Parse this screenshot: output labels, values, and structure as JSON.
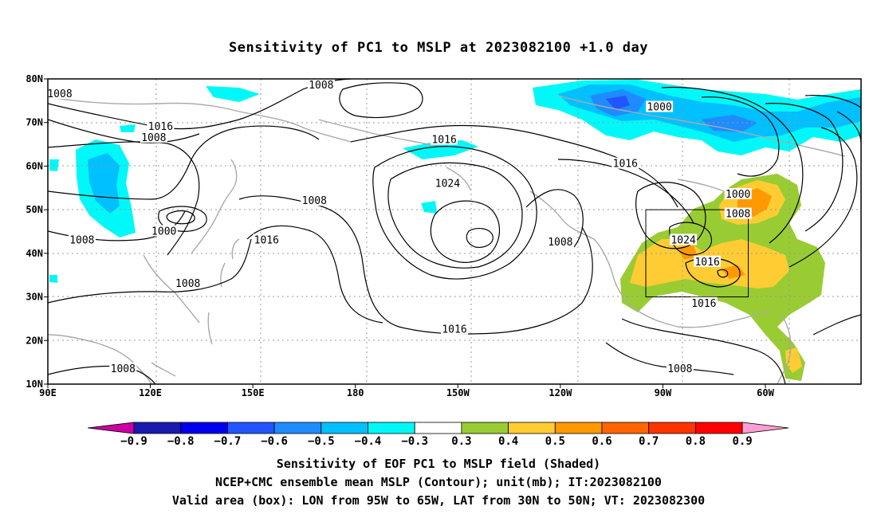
{
  "title": "Sensitivity of PC1 to MSLP at 2023082100 +1.0 day",
  "map": {
    "lat_ticks": [
      "80N",
      "70N",
      "60N",
      "50N",
      "40N",
      "30N",
      "20N",
      "10N"
    ],
    "lon_ticks": [
      "90E",
      "120E",
      "150E",
      "180",
      "150W",
      "120W",
      "90W",
      "60W"
    ],
    "contour_unit": "mb",
    "contour_labels": [
      {
        "text": "1008",
        "lon": 93.5,
        "lat": 76.5
      },
      {
        "text": "1016",
        "lon": 123,
        "lat": 69.0
      },
      {
        "text": "1008",
        "lon": 121,
        "lat": 66.5
      },
      {
        "text": "1008",
        "lon": 170,
        "lat": 78.5
      },
      {
        "text": "1016",
        "lon": -154,
        "lat": 66.0
      },
      {
        "text": "1000",
        "lon": -91,
        "lat": 73.5
      },
      {
        "text": "1016",
        "lon": -101,
        "lat": 60.5
      },
      {
        "text": "1024",
        "lon": -153,
        "lat": 56.0
      },
      {
        "text": "1008",
        "lon": 168,
        "lat": 52.0
      },
      {
        "text": "1000",
        "lon": -68,
        "lat": 53.5
      },
      {
        "text": "1008",
        "lon": -68,
        "lat": 49.0
      },
      {
        "text": "1000",
        "lon": 124,
        "lat": 45.0
      },
      {
        "text": "1016",
        "lon": 154,
        "lat": 43.0
      },
      {
        "text": "1008",
        "lon": 100,
        "lat": 43.0
      },
      {
        "text": "1024",
        "lon": -84,
        "lat": 43.0
      },
      {
        "text": "1008",
        "lon": -120,
        "lat": 42.5
      },
      {
        "text": "1016",
        "lon": -77,
        "lat": 38.0
      },
      {
        "text": "1008",
        "lon": 131,
        "lat": 33.0
      },
      {
        "text": "1016",
        "lon": -78,
        "lat": 28.5
      },
      {
        "text": "1016",
        "lon": -151,
        "lat": 22.5
      },
      {
        "text": "1008",
        "lon": 112,
        "lat": 13.5
      },
      {
        "text": "1008",
        "lon": -85,
        "lat": 13.5
      }
    ],
    "valid_box": {
      "lon_w": -95,
      "lon_e": -65,
      "lat_s": 30,
      "lat_n": 50
    }
  },
  "colorbar": {
    "labels": [
      "−0.9",
      "−0.8",
      "−0.7",
      "−0.6",
      "−0.5",
      "−0.4",
      "−0.3",
      "0.3",
      "0.4",
      "0.5",
      "0.6",
      "0.7",
      "0.8",
      "0.9"
    ],
    "colors": [
      "#cc00a0",
      "#1a1ab0",
      "#0000ee",
      "#2255ff",
      "#1e8cff",
      "#00c0ff",
      "#00f8f8",
      "#ffffff",
      "#99cc33",
      "#ffcc33",
      "#ff9900",
      "#ff6600",
      "#ff3300",
      "#ff0000",
      "#ff9ed2"
    ]
  },
  "shading_colors": {
    "neg_strong": "#2255ff",
    "neg_mid": "#1e8cff",
    "neg_light": "#00c0ff",
    "neg_faint": "#00f8f8",
    "pos_faint": "#99cc33",
    "pos_light": "#ffcc33",
    "pos_mid": "#ff9900"
  },
  "captions": {
    "line1": "Sensitivity of EOF PC1 to MSLP field (Shaded)",
    "line2": "NCEP+CMC ensemble mean MSLP (Contour); unit(mb); IT:2023082100",
    "line3": "Valid area (box): LON from 95W to 65W, LAT from 30N to 50N; VT: 2023082300"
  }
}
